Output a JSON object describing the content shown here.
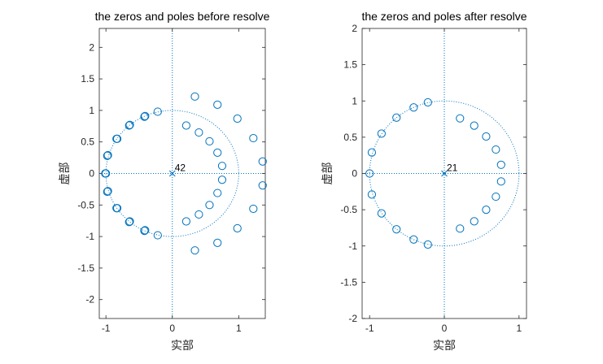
{
  "chart_data": [
    {
      "type": "scatter",
      "title": "the zeros and poles before resolve",
      "xlabel": "实部",
      "ylabel": "虚部",
      "xlim": [
        -1.1,
        1.4
      ],
      "ylim": [
        -2.3,
        2.3
      ],
      "xticks": [
        -1,
        0,
        1
      ],
      "yticks": [
        -2,
        -1.5,
        -1,
        -0.5,
        0,
        0.5,
        1,
        1.5,
        2
      ],
      "xtick_labels": [
        "-1",
        "0",
        "1"
      ],
      "ytick_labels": [
        "-2",
        "-1.5",
        "-1",
        "-0.5",
        "0",
        "0.5",
        "1",
        "1.5",
        "2"
      ],
      "unit_circle": true,
      "color": "#0072bd",
      "series": [
        {
          "marker": "o",
          "points": [
            [
              -0.22,
              0.98
            ],
            [
              -0.41,
              0.91
            ],
            [
              -0.42,
              0.9
            ],
            [
              -0.64,
              0.77
            ],
            [
              -0.65,
              0.76
            ],
            [
              -0.83,
              0.55
            ],
            [
              -0.84,
              0.55
            ],
            [
              -0.97,
              0.29
            ],
            [
              -0.98,
              0.28
            ],
            [
              -1.01,
              0.0
            ],
            [
              -1.0,
              0.0
            ],
            [
              -0.97,
              -0.28
            ],
            [
              -0.98,
              -0.29
            ],
            [
              -0.83,
              -0.55
            ],
            [
              -0.84,
              -0.55
            ],
            [
              -0.64,
              -0.76
            ],
            [
              -0.65,
              -0.77
            ],
            [
              -0.41,
              -0.9
            ],
            [
              -0.42,
              -0.91
            ],
            [
              -0.22,
              -0.98
            ],
            [
              0.21,
              0.76
            ],
            [
              0.4,
              0.65
            ],
            [
              0.56,
              0.51
            ],
            [
              0.68,
              0.33
            ],
            [
              0.75,
              0.12
            ],
            [
              0.75,
              -0.1
            ],
            [
              0.68,
              -0.31
            ],
            [
              0.56,
              -0.5
            ],
            [
              0.4,
              -0.65
            ],
            [
              0.21,
              -0.76
            ],
            [
              0.34,
              1.22
            ],
            [
              0.68,
              1.09
            ],
            [
              0.98,
              0.87
            ],
            [
              1.22,
              0.56
            ],
            [
              1.36,
              0.19
            ],
            [
              1.36,
              -0.19
            ],
            [
              1.22,
              -0.56
            ],
            [
              0.98,
              -0.87
            ],
            [
              0.68,
              -1.1
            ],
            [
              0.34,
              -1.22
            ]
          ]
        },
        {
          "marker": "x",
          "points": [
            [
              0,
              0
            ]
          ],
          "annotation": "42"
        }
      ]
    },
    {
      "type": "scatter",
      "title": "the zeros and poles after resolve",
      "xlabel": "实部",
      "ylabel": "虚部",
      "xlim": [
        -1.1,
        1.1
      ],
      "ylim": [
        -2,
        2
      ],
      "xticks": [
        -1,
        0,
        1
      ],
      "yticks": [
        -2,
        -1.5,
        -1,
        -0.5,
        0,
        0.5,
        1,
        1.5,
        2
      ],
      "xtick_labels": [
        "-1",
        "0",
        "1"
      ],
      "ytick_labels": [
        "-2",
        "-1.5",
        "-1",
        "-0.5",
        "0",
        "0.5",
        "1",
        "1.5",
        "2"
      ],
      "unit_circle": true,
      "color": "#0072bd",
      "series": [
        {
          "marker": "o",
          "points": [
            [
              -0.22,
              0.98
            ],
            [
              -0.41,
              0.91
            ],
            [
              -0.64,
              0.77
            ],
            [
              -0.84,
              0.55
            ],
            [
              -0.97,
              0.29
            ],
            [
              -1.0,
              0.0
            ],
            [
              -0.97,
              -0.29
            ],
            [
              -0.84,
              -0.55
            ],
            [
              -0.64,
              -0.77
            ],
            [
              -0.41,
              -0.91
            ],
            [
              -0.22,
              -0.98
            ],
            [
              0.21,
              0.76
            ],
            [
              0.4,
              0.66
            ],
            [
              0.56,
              0.51
            ],
            [
              0.69,
              0.33
            ],
            [
              0.76,
              0.12
            ],
            [
              0.76,
              -0.11
            ],
            [
              0.69,
              -0.32
            ],
            [
              0.56,
              -0.5
            ],
            [
              0.4,
              -0.66
            ],
            [
              0.21,
              -0.76
            ]
          ]
        },
        {
          "marker": "x",
          "points": [
            [
              0,
              0
            ]
          ],
          "annotation": "21"
        }
      ]
    }
  ]
}
